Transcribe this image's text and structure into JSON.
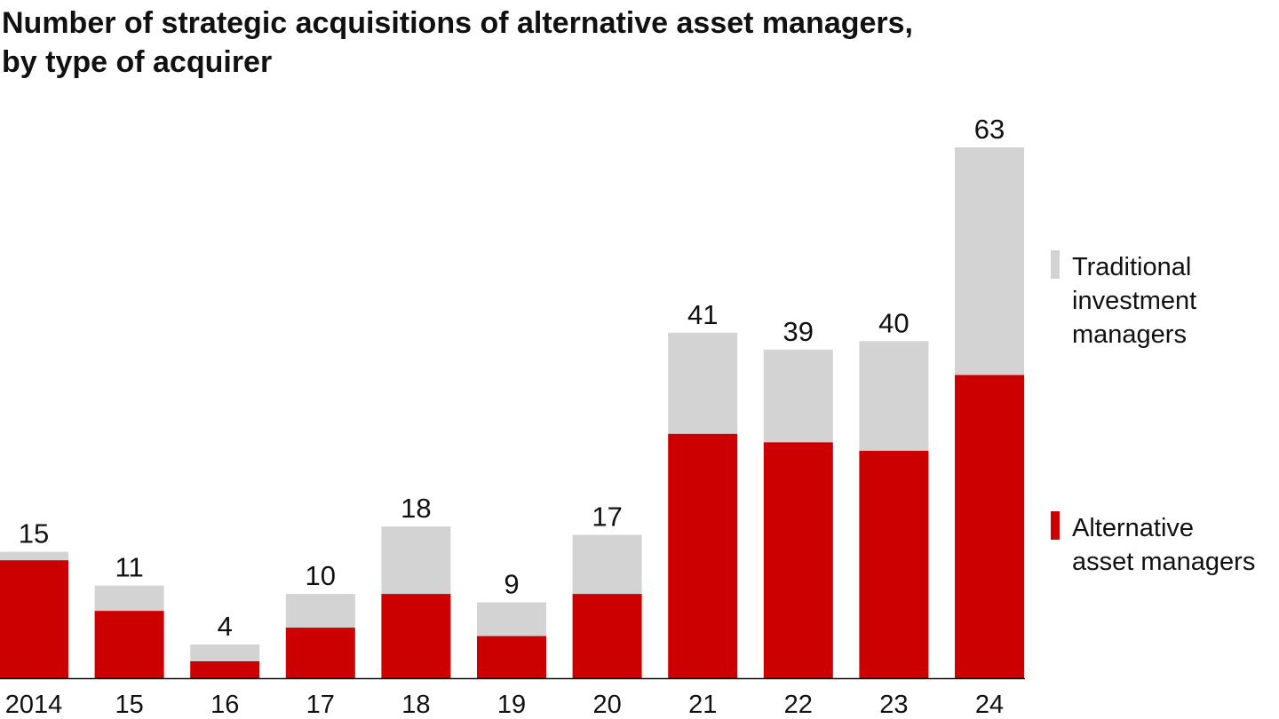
{
  "chart_data": {
    "type": "bar",
    "stacked": true,
    "title": [
      "Number of strategic acquisitions of alternative asset managers,",
      "by type of acquirer"
    ],
    "categories": [
      "2014",
      "15",
      "16",
      "17",
      "18",
      "19",
      "20",
      "21",
      "22",
      "23",
      "24"
    ],
    "series": [
      {
        "name": [
          "Alternative",
          "asset managers"
        ],
        "color": "#cc0000",
        "values": [
          14,
          8,
          2,
          6,
          10,
          5,
          10,
          29,
          28,
          27,
          36
        ]
      },
      {
        "name": [
          "Traditional",
          "investment",
          "managers"
        ],
        "color": "#d3d3d3",
        "values": [
          1,
          3,
          2,
          4,
          8,
          4,
          7,
          12,
          11,
          13,
          27
        ]
      }
    ],
    "totals": [
      15,
      11,
      4,
      10,
      18,
      9,
      17,
      41,
      39,
      40,
      63
    ],
    "ylim": [
      0,
      63
    ],
    "legend_position": "right",
    "grid": false,
    "xlabel": "",
    "ylabel": ""
  }
}
